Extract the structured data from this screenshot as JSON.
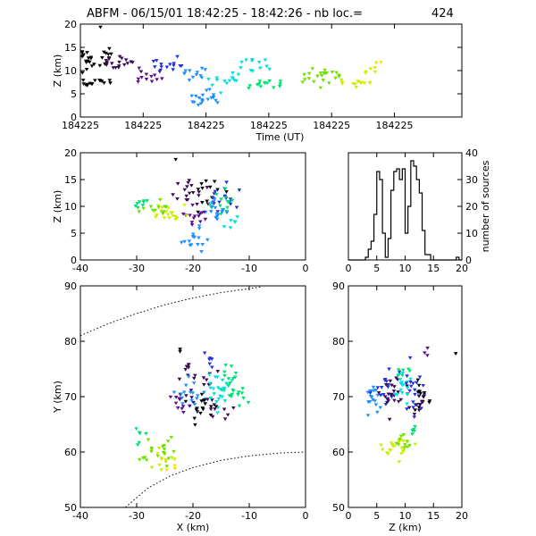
{
  "header": {
    "title": "ABFM - 06/15/01 18:42:25 - 18:42:26 - nb loc.=",
    "count": "424"
  },
  "colors": {
    "axis": "#000000",
    "background": "#ffffff",
    "source_scale": [
      "#000000",
      "#3a0a55",
      "#5a1090",
      "#2030e0",
      "#1e90ff",
      "#00e0e0",
      "#00e070",
      "#70e000",
      "#d0ec00",
      "#ffe000"
    ]
  },
  "chart_data": [
    {
      "id": "time-height",
      "type": "scatter",
      "xlabel": "Time (UT)",
      "ylabel": "Z (km)",
      "xlim": [
        0,
        1
      ],
      "ylim": [
        0,
        20
      ],
      "x_tick_labels": [
        "184225",
        "184225",
        "184225",
        "184225",
        "184225",
        "184225"
      ],
      "y_ticks": [
        0,
        5,
        10,
        15,
        20
      ],
      "grid": false,
      "clusters": [
        {
          "x_range": [
            0.0,
            0.1
          ],
          "y_center": 12.8,
          "y_spread": 1.0,
          "n": 26,
          "color_index": 0
        },
        {
          "x_range": [
            0.0,
            0.08
          ],
          "y_center": 7.4,
          "y_spread": 0.6,
          "n": 16,
          "color_index": 0
        },
        {
          "x_range": [
            0.06,
            0.16
          ],
          "y_center": 11.8,
          "y_spread": 1.0,
          "n": 18,
          "color_index": 1
        },
        {
          "x_range": [
            0.15,
            0.22
          ],
          "y_center": 8.7,
          "y_spread": 0.6,
          "n": 12,
          "color_index": 2
        },
        {
          "x_range": [
            0.19,
            0.27
          ],
          "y_center": 11.3,
          "y_spread": 0.8,
          "n": 14,
          "color_index": 3
        },
        {
          "x_range": [
            0.27,
            0.33
          ],
          "y_center": 9.0,
          "y_spread": 0.8,
          "n": 12,
          "color_index": 4
        },
        {
          "x_range": [
            0.29,
            0.36
          ],
          "y_center": 4.0,
          "y_spread": 0.9,
          "n": 20,
          "color_index": 4
        },
        {
          "x_range": [
            0.33,
            0.42
          ],
          "y_center": 8.0,
          "y_spread": 1.1,
          "n": 14,
          "color_index": 5
        },
        {
          "x_range": [
            0.42,
            0.5
          ],
          "y_center": 11.2,
          "y_spread": 0.8,
          "n": 12,
          "color_index": 5
        },
        {
          "x_range": [
            0.44,
            0.55
          ],
          "y_center": 7.0,
          "y_spread": 0.5,
          "n": 14,
          "color_index": 6
        },
        {
          "x_range": [
            0.58,
            0.68
          ],
          "y_center": 8.6,
          "y_spread": 1.0,
          "n": 22,
          "color_index": 7
        },
        {
          "x_range": [
            0.68,
            0.76
          ],
          "y_center": 7.4,
          "y_spread": 0.7,
          "n": 14,
          "color_index": 8
        },
        {
          "x_range": [
            0.74,
            0.78
          ],
          "y_center": 10.5,
          "y_spread": 0.8,
          "n": 6,
          "color_index": 8
        },
        {
          "x_range": [
            0.78,
            0.79
          ],
          "y_center": 11.8,
          "y_spread": 0.2,
          "n": 1,
          "color_index": 9
        },
        {
          "x_range": [
            0.05,
            0.06
          ],
          "y_center": 19.3,
          "y_spread": 0.1,
          "n": 1,
          "color_index": 0
        }
      ]
    },
    {
      "id": "xz-projection",
      "type": "scatter",
      "xlabel": "",
      "ylabel": "Z (km)",
      "xlim": [
        -40,
        0
      ],
      "ylim": [
        0,
        20
      ],
      "x_ticks": [
        -40,
        -30,
        -20,
        -10,
        0
      ],
      "y_ticks": [
        0,
        5,
        10,
        15,
        20
      ],
      "clusters": [
        {
          "x": -19.5,
          "y": 12.5,
          "sx": 1.5,
          "sy": 1.2,
          "n": 18,
          "color_index": 1
        },
        {
          "x": -17.5,
          "y": 12.0,
          "sx": 1.5,
          "sy": 1.2,
          "n": 12,
          "color_index": 0
        },
        {
          "x": -14.5,
          "y": 11.5,
          "sx": 1.5,
          "sy": 1.2,
          "n": 18,
          "color_index": 3
        },
        {
          "x": -15.5,
          "y": 10.5,
          "sx": 1.2,
          "sy": 1.5,
          "n": 14,
          "color_index": 6
        },
        {
          "x": -16.5,
          "y": 9.5,
          "sx": 1.0,
          "sy": 1.2,
          "n": 14,
          "color_index": 4
        },
        {
          "x": -20.0,
          "y": 7.8,
          "sx": 1.5,
          "sy": 0.8,
          "n": 14,
          "color_index": 2
        },
        {
          "x": -19.5,
          "y": 3.8,
          "sx": 1.2,
          "sy": 1.0,
          "n": 16,
          "color_index": 4
        },
        {
          "x": -13.0,
          "y": 7.0,
          "sx": 1.0,
          "sy": 0.5,
          "n": 6,
          "color_index": 5
        },
        {
          "x": -25.0,
          "y": 8.5,
          "sx": 1.6,
          "sy": 1.2,
          "n": 20,
          "color_index": 8
        },
        {
          "x": -26.5,
          "y": 9.5,
          "sx": 1.5,
          "sy": 1.0,
          "n": 12,
          "color_index": 7
        },
        {
          "x": -29.5,
          "y": 10.5,
          "sx": 1.0,
          "sy": 0.6,
          "n": 8,
          "color_index": 6
        },
        {
          "x": -23.0,
          "y": 19.0,
          "sx": 0.1,
          "sy": 0.1,
          "n": 1,
          "color_index": 0
        }
      ]
    },
    {
      "id": "height-histogram",
      "type": "bar",
      "xlabel": "",
      "ylabel": "number of sources",
      "xlim": [
        0,
        20
      ],
      "ylim": [
        0,
        40
      ],
      "x_ticks": [
        0,
        5,
        10,
        15,
        20
      ],
      "y_ticks": [
        0,
        10,
        20,
        30,
        40
      ],
      "bin_start": 0,
      "bin_width": 0.5,
      "values": [
        0,
        0,
        0,
        0,
        0,
        0,
        1,
        4,
        7,
        17,
        33,
        30,
        10,
        1,
        8,
        26,
        33,
        34,
        30,
        34,
        10,
        20,
        37,
        35,
        30,
        25,
        11,
        2,
        2,
        0,
        0,
        0,
        0,
        0,
        0,
        0,
        0,
        0,
        1,
        0
      ]
    },
    {
      "id": "xy-plan",
      "type": "scatter",
      "xlabel": "X (km)",
      "ylabel": "Y (km)",
      "xlim": [
        -40,
        0
      ],
      "ylim": [
        50,
        90
      ],
      "x_ticks": [
        -40,
        -30,
        -20,
        -10,
        0
      ],
      "y_ticks": [
        50,
        60,
        70,
        80,
        90
      ],
      "range_arcs": [
        {
          "points": [
            [
              -40,
              81
            ],
            [
              -35,
              83.2
            ],
            [
              -30,
              85
            ],
            [
              -25,
              86.6
            ],
            [
              -20,
              87.8
            ],
            [
              -15,
              88.8
            ],
            [
              -10,
              89.5
            ],
            [
              -8,
              89.8
            ]
          ]
        },
        {
          "points": [
            [
              -32,
              50
            ],
            [
              -28,
              53.5
            ],
            [
              -24,
              55.7
            ],
            [
              -20,
              57.2
            ],
            [
              -15,
              58.5
            ],
            [
              -10,
              59.3
            ],
            [
              -5,
              59.8
            ],
            [
              0,
              60
            ]
          ]
        }
      ],
      "clusters": [
        {
          "x": -19.0,
          "y": 72.0,
          "sx": 1.6,
          "sy": 2.0,
          "n": 24,
          "color_index": 1
        },
        {
          "x": -20.5,
          "y": 70.2,
          "sx": 1.2,
          "sy": 1.4,
          "n": 18,
          "color_index": 4
        },
        {
          "x": -15.0,
          "y": 71.5,
          "sx": 1.2,
          "sy": 2.0,
          "n": 24,
          "color_index": 5
        },
        {
          "x": -13.5,
          "y": 72.5,
          "sx": 1.0,
          "sy": 2.0,
          "n": 16,
          "color_index": 6
        },
        {
          "x": -18.5,
          "y": 68.5,
          "sx": 1.5,
          "sy": 1.5,
          "n": 16,
          "color_index": 0
        },
        {
          "x": -22.0,
          "y": 69.0,
          "sx": 1.2,
          "sy": 1.0,
          "n": 10,
          "color_index": 2
        },
        {
          "x": -17.5,
          "y": 76.0,
          "sx": 0.8,
          "sy": 1.2,
          "n": 6,
          "color_index": 3
        },
        {
          "x": -16.0,
          "y": 67.5,
          "sx": 1.5,
          "sy": 0.8,
          "n": 8,
          "color_index": 1
        },
        {
          "x": -11.5,
          "y": 70.5,
          "sx": 0.6,
          "sy": 1.2,
          "n": 8,
          "color_index": 6
        },
        {
          "x": -27.0,
          "y": 60.0,
          "sx": 1.5,
          "sy": 1.5,
          "n": 20,
          "color_index": 7
        },
        {
          "x": -25.5,
          "y": 58.5,
          "sx": 1.2,
          "sy": 1.2,
          "n": 10,
          "color_index": 8
        },
        {
          "x": -29.5,
          "y": 63.0,
          "sx": 0.8,
          "sy": 0.8,
          "n": 6,
          "color_index": 6
        },
        {
          "x": -24.0,
          "y": 57.0,
          "sx": 0.5,
          "sy": 0.5,
          "n": 3,
          "color_index": 9
        },
        {
          "x": -22.0,
          "y": 78.5,
          "sx": 0.4,
          "sy": 0.4,
          "n": 2,
          "color_index": 0
        }
      ]
    },
    {
      "id": "zy-projection",
      "type": "scatter",
      "xlabel": "Z (km)",
      "ylabel": "",
      "xlim": [
        0,
        20
      ],
      "ylim": [
        50,
        90
      ],
      "x_ticks": [
        0,
        5,
        10,
        15,
        20
      ],
      "y_ticks": [
        50,
        60,
        70,
        80,
        90
      ],
      "clusters": [
        {
          "x": 4.5,
          "y": 70.2,
          "sx": 0.8,
          "sy": 1.5,
          "n": 20,
          "color_index": 4
        },
        {
          "x": 6.5,
          "y": 71.5,
          "sx": 1.0,
          "sy": 1.6,
          "n": 16,
          "color_index": 3
        },
        {
          "x": 8.0,
          "y": 70.5,
          "sx": 1.2,
          "sy": 2.0,
          "n": 22,
          "color_index": 1
        },
        {
          "x": 9.5,
          "y": 71.5,
          "sx": 1.0,
          "sy": 2.0,
          "n": 16,
          "color_index": 5
        },
        {
          "x": 11.5,
          "y": 72.0,
          "sx": 1.0,
          "sy": 2.0,
          "n": 20,
          "color_index": 3
        },
        {
          "x": 13.0,
          "y": 70.0,
          "sx": 1.0,
          "sy": 2.0,
          "n": 14,
          "color_index": 0
        },
        {
          "x": 12.5,
          "y": 69.0,
          "sx": 0.8,
          "sy": 1.2,
          "n": 10,
          "color_index": 1
        },
        {
          "x": 10.0,
          "y": 74.0,
          "sx": 1.0,
          "sy": 0.8,
          "n": 6,
          "color_index": 6
        },
        {
          "x": 8.5,
          "y": 60.0,
          "sx": 1.2,
          "sy": 1.6,
          "n": 22,
          "color_index": 8
        },
        {
          "x": 9.5,
          "y": 61.5,
          "sx": 1.0,
          "sy": 1.2,
          "n": 10,
          "color_index": 7
        },
        {
          "x": 11.5,
          "y": 64.0,
          "sx": 0.6,
          "sy": 0.8,
          "n": 5,
          "color_index": 6
        },
        {
          "x": 13.5,
          "y": 78.0,
          "sx": 0.5,
          "sy": 0.5,
          "n": 3,
          "color_index": 2
        },
        {
          "x": 19.0,
          "y": 77.5,
          "sx": 0.2,
          "sy": 0.2,
          "n": 1,
          "color_index": 0
        }
      ]
    }
  ]
}
